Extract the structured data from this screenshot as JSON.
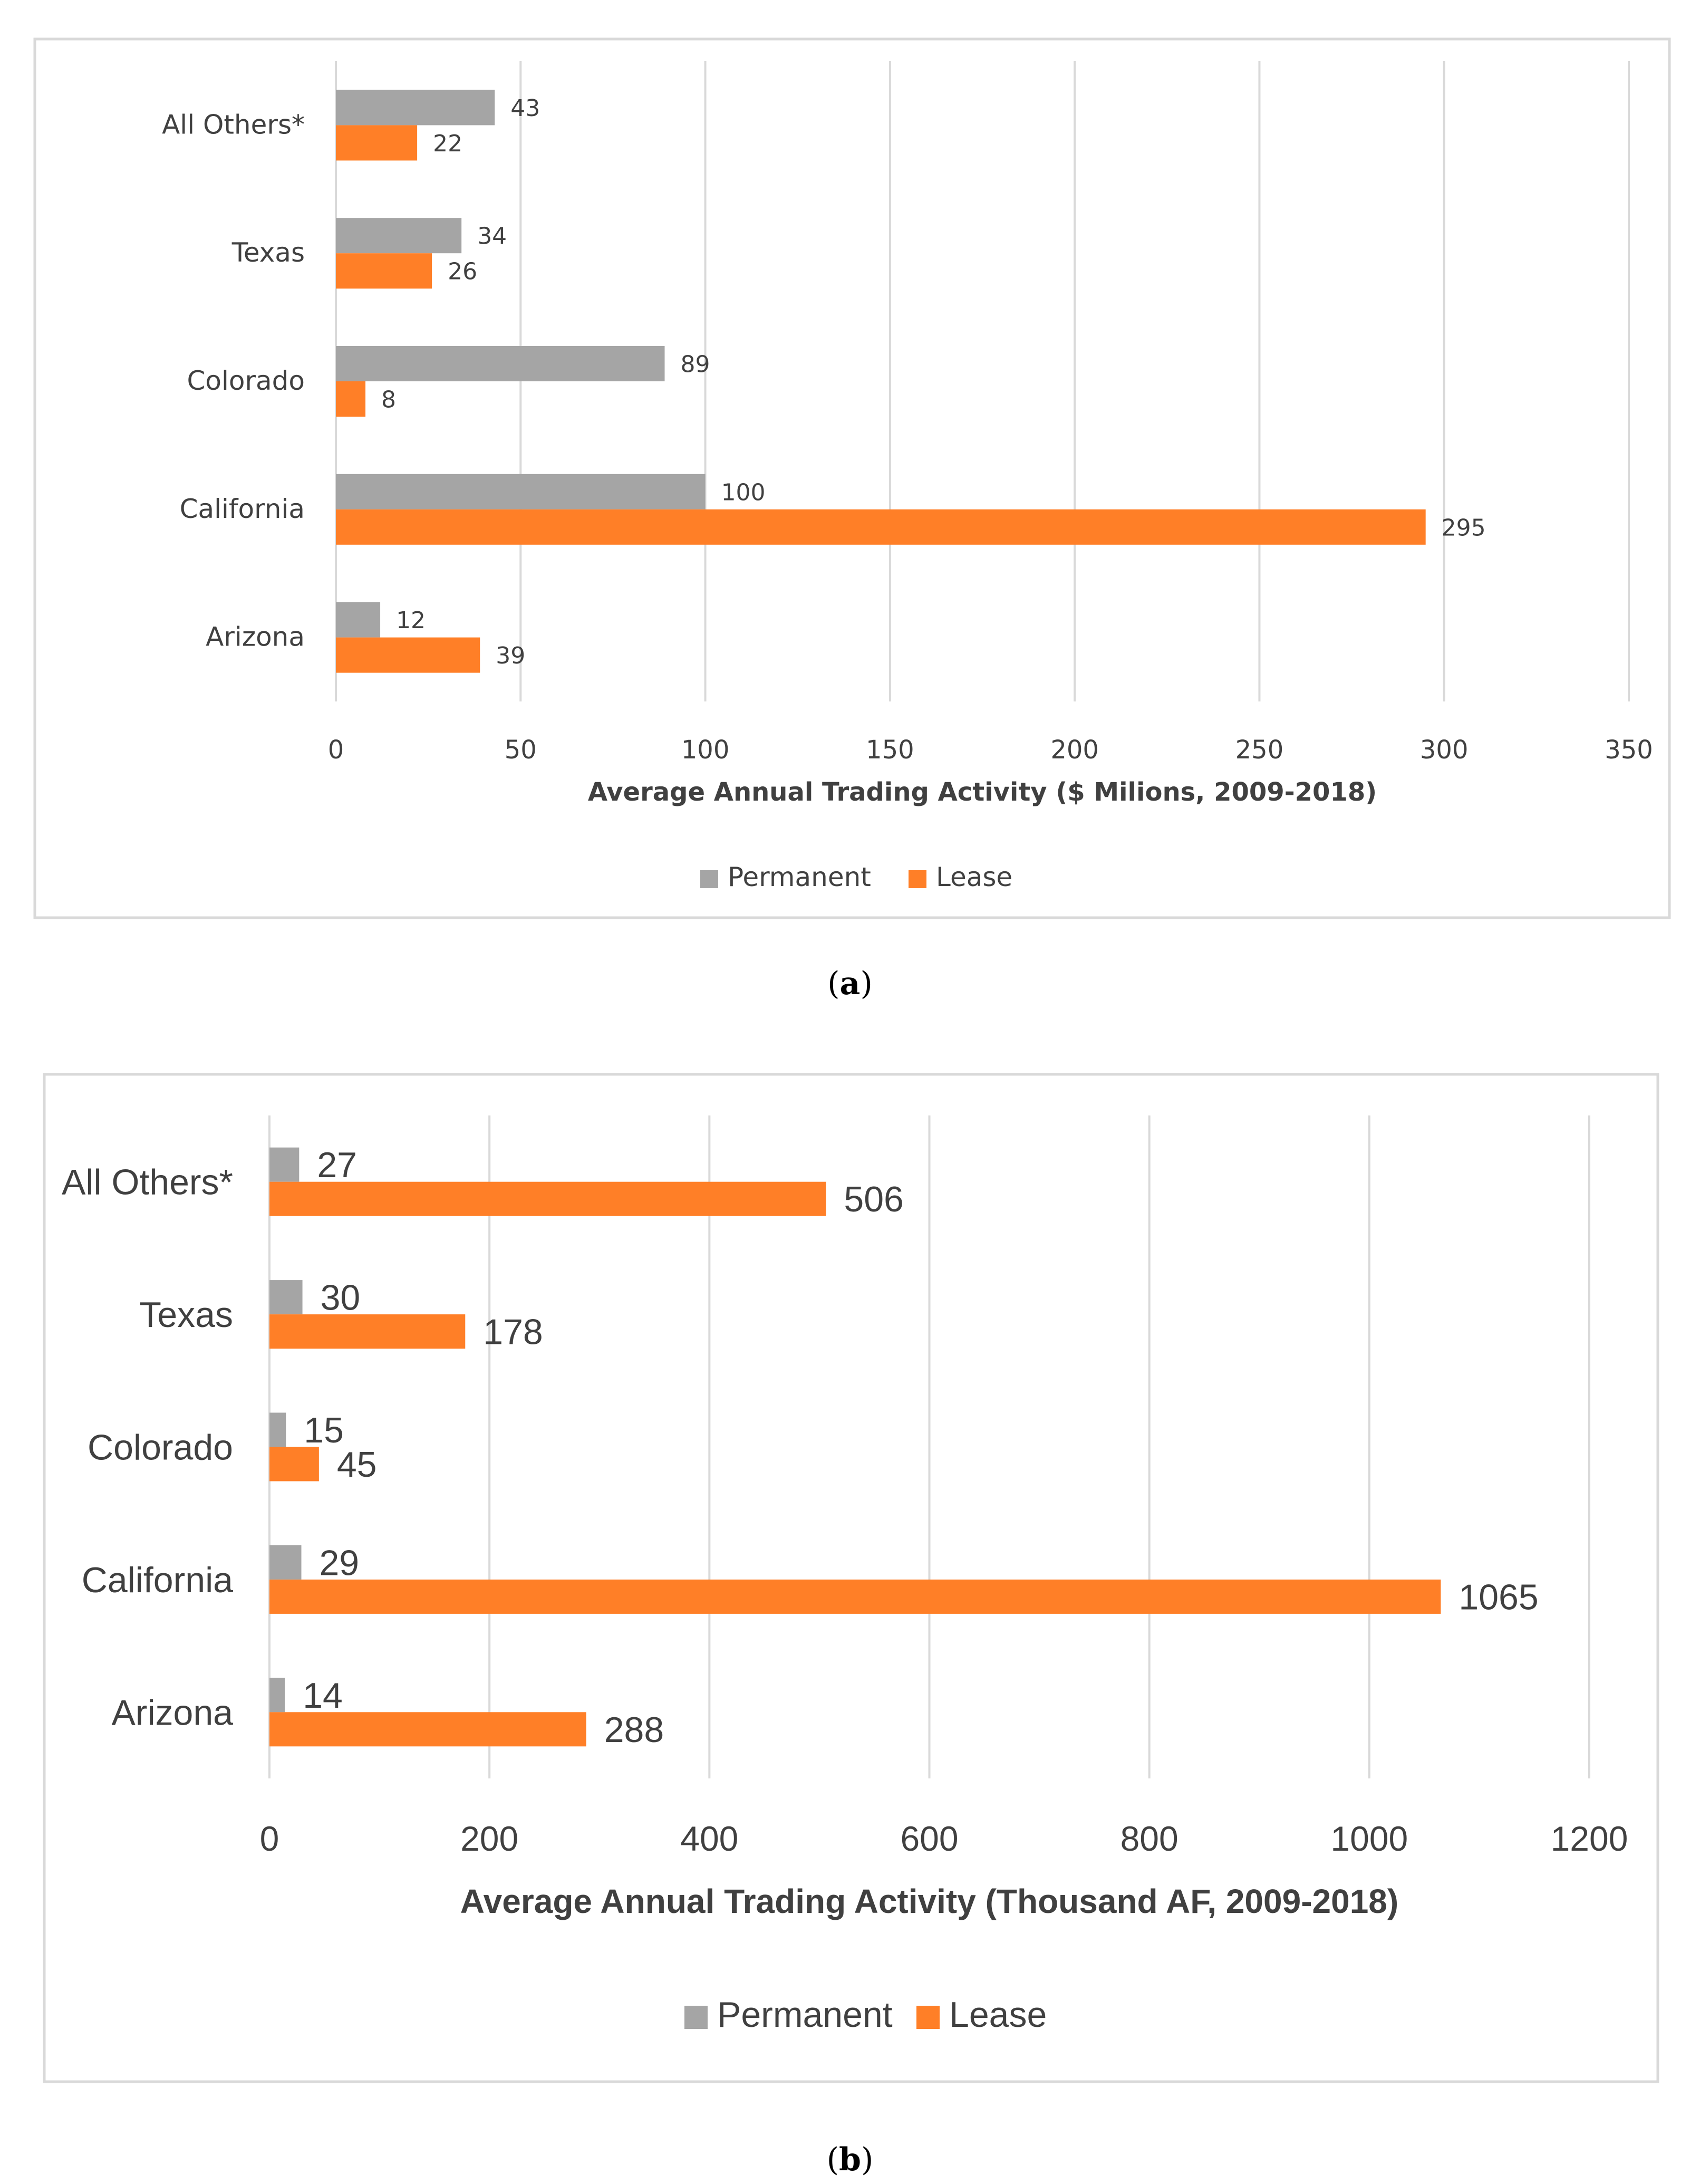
{
  "colors": {
    "permanent": "#a5a5a5",
    "lease": "#ff7f27",
    "grid": "#d9d9d9",
    "border": "#d9d9d9"
  },
  "chart_data": [
    {
      "type": "bar",
      "orientation": "horizontal",
      "categories": [
        "All Others*",
        "Texas",
        "Colorado",
        "California",
        "Arizona"
      ],
      "series": [
        {
          "name": "Permanent",
          "values": [
            43,
            34,
            89,
            100,
            12
          ]
        },
        {
          "name": "Lease",
          "values": [
            22,
            26,
            8,
            295,
            39
          ]
        }
      ],
      "xticks": [
        0,
        50,
        100,
        150,
        200,
        250,
        300,
        350
      ],
      "xlim": [
        0,
        350
      ],
      "xlabel": "Average Annual Trading Activity ($ Milions, 2009-2018)",
      "legend": [
        "Permanent",
        "Lease"
      ],
      "legend_position": "bottom",
      "grid": true,
      "caption": "a"
    },
    {
      "type": "bar",
      "orientation": "horizontal",
      "categories": [
        "All Others*",
        "Texas",
        "Colorado",
        "California",
        "Arizona"
      ],
      "series": [
        {
          "name": "Permanent",
          "values": [
            27,
            30,
            15,
            29,
            14
          ]
        },
        {
          "name": "Lease",
          "values": [
            506,
            178,
            45,
            1065,
            288
          ]
        }
      ],
      "xticks": [
        0,
        200,
        400,
        600,
        800,
        1000,
        1200
      ],
      "xlim": [
        0,
        1200
      ],
      "xlabel": "Average Annual Trading Activity (Thousand AF, 2009-2018)",
      "legend": [
        "Permanent",
        "Lease"
      ],
      "legend_position": "bottom",
      "grid": true,
      "caption": "b"
    }
  ]
}
